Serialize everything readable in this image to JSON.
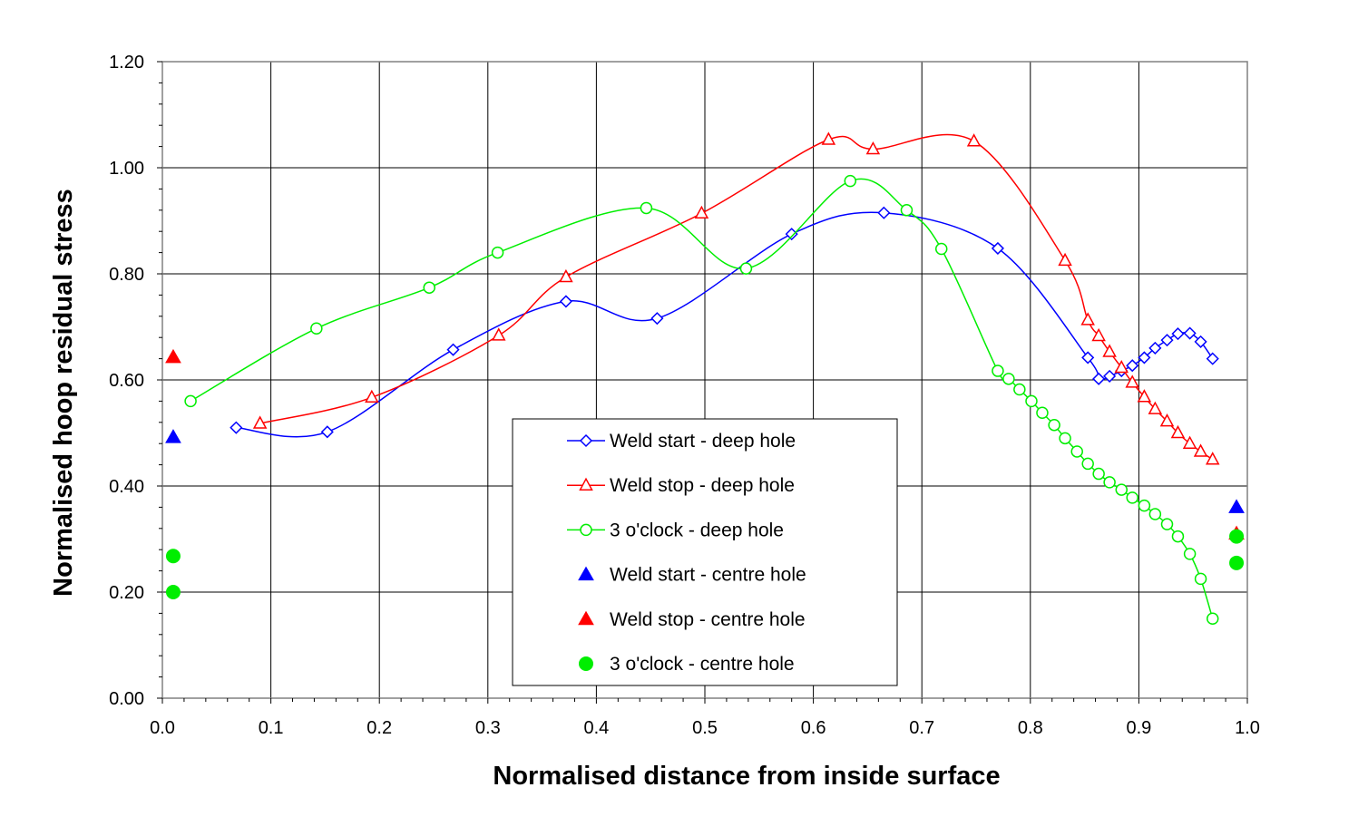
{
  "chart_data": {
    "type": "scatter",
    "xlabel": "Normalised distance from inside surface",
    "ylabel": "Normalised hoop residual stress",
    "xlim": [
      0.0,
      1.0
    ],
    "ylim": [
      0.0,
      1.2
    ],
    "xticks": [
      "0.0",
      "0.1",
      "0.2",
      "0.3",
      "0.4",
      "0.5",
      "0.6",
      "0.7",
      "0.8",
      "0.9",
      "1.0"
    ],
    "yticks": [
      "0.00",
      "0.20",
      "0.40",
      "0.60",
      "0.80",
      "1.00",
      "1.20"
    ],
    "grid": true,
    "legend_position": "center",
    "series": [
      {
        "name": "Weld start - deep hole",
        "color": "#0000ff",
        "marker": "diamond-open",
        "line": true,
        "points": [
          [
            0.068,
            0.51
          ],
          [
            0.152,
            0.502
          ],
          [
            0.268,
            0.657
          ],
          [
            0.372,
            0.748
          ],
          [
            0.456,
            0.716
          ],
          [
            0.58,
            0.875
          ],
          [
            0.665,
            0.915
          ],
          [
            0.77,
            0.848
          ],
          [
            0.853,
            0.642
          ],
          [
            0.863,
            0.602
          ],
          [
            0.873,
            0.607
          ],
          [
            0.884,
            0.617
          ],
          [
            0.894,
            0.627
          ],
          [
            0.905,
            0.642
          ],
          [
            0.915,
            0.66
          ],
          [
            0.926,
            0.675
          ],
          [
            0.936,
            0.687
          ],
          [
            0.947,
            0.688
          ],
          [
            0.957,
            0.672
          ],
          [
            0.968,
            0.64
          ]
        ]
      },
      {
        "name": "Weld stop - deep hole",
        "color": "#ff0000",
        "marker": "triangle-open",
        "line": true,
        "points": [
          [
            0.09,
            0.518
          ],
          [
            0.193,
            0.567
          ],
          [
            0.31,
            0.684
          ],
          [
            0.372,
            0.794
          ],
          [
            0.497,
            0.914
          ],
          [
            0.614,
            1.053
          ],
          [
            0.655,
            1.035
          ],
          [
            0.748,
            1.05
          ],
          [
            0.832,
            0.825
          ],
          [
            0.853,
            0.713
          ],
          [
            0.863,
            0.683
          ],
          [
            0.873,
            0.653
          ],
          [
            0.884,
            0.623
          ],
          [
            0.894,
            0.595
          ],
          [
            0.905,
            0.568
          ],
          [
            0.915,
            0.545
          ],
          [
            0.926,
            0.522
          ],
          [
            0.936,
            0.5
          ],
          [
            0.947,
            0.48
          ],
          [
            0.957,
            0.465
          ],
          [
            0.968,
            0.45
          ]
        ]
      },
      {
        "name": "3 o'clock - deep hole",
        "color": "#00ee00",
        "marker": "circle-open",
        "line": true,
        "points": [
          [
            0.026,
            0.56
          ],
          [
            0.142,
            0.697
          ],
          [
            0.246,
            0.774
          ],
          [
            0.309,
            0.84
          ],
          [
            0.446,
            0.924
          ],
          [
            0.538,
            0.81
          ],
          [
            0.634,
            0.975
          ],
          [
            0.686,
            0.92
          ],
          [
            0.718,
            0.847
          ],
          [
            0.77,
            0.617
          ],
          [
            0.78,
            0.602
          ],
          [
            0.79,
            0.582
          ],
          [
            0.801,
            0.56
          ],
          [
            0.811,
            0.538
          ],
          [
            0.822,
            0.515
          ],
          [
            0.832,
            0.49
          ],
          [
            0.843,
            0.465
          ],
          [
            0.853,
            0.442
          ],
          [
            0.863,
            0.423
          ],
          [
            0.873,
            0.407
          ],
          [
            0.884,
            0.393
          ],
          [
            0.894,
            0.378
          ],
          [
            0.905,
            0.363
          ],
          [
            0.915,
            0.347
          ],
          [
            0.926,
            0.328
          ],
          [
            0.936,
            0.305
          ],
          [
            0.947,
            0.272
          ],
          [
            0.957,
            0.225
          ],
          [
            0.968,
            0.15
          ]
        ]
      },
      {
        "name": "Weld start - centre hole",
        "color": "#0000ff",
        "marker": "triangle-filled",
        "line": false,
        "points": [
          [
            0.01,
            0.492
          ],
          [
            0.99,
            0.36
          ]
        ]
      },
      {
        "name": "Weld stop - centre hole",
        "color": "#ff0000",
        "marker": "triangle-filled",
        "line": false,
        "points": [
          [
            0.01,
            0.643
          ],
          [
            0.99,
            0.31
          ]
        ]
      },
      {
        "name": "3 o'clock - centre hole",
        "color": "#00ee00",
        "marker": "circle-filled",
        "line": false,
        "points": [
          [
            0.01,
            0.268
          ],
          [
            0.01,
            0.2
          ],
          [
            0.99,
            0.305
          ],
          [
            0.99,
            0.255
          ]
        ]
      }
    ]
  }
}
